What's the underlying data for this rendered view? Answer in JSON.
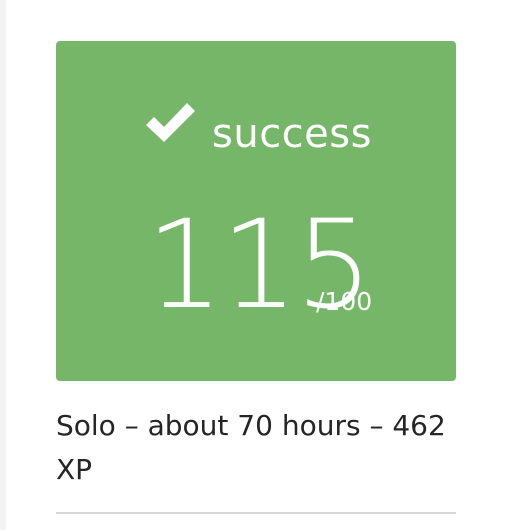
{
  "result": {
    "status_label": "success",
    "status_icon": "checkmark-icon",
    "score": "115",
    "score_total": "/100",
    "card_color": "#76b669"
  },
  "details": {
    "text": "Solo – about 70 hours – 462 XP"
  }
}
